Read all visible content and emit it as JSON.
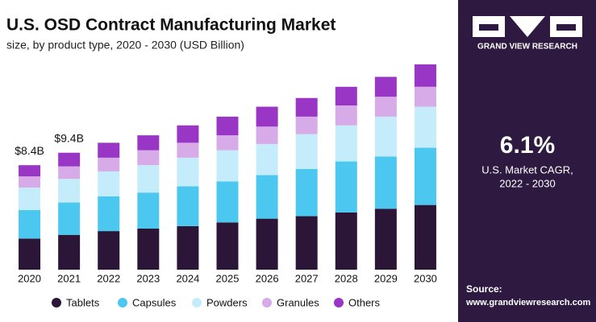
{
  "chart_data": {
    "type": "stacked_bar",
    "title": "U.S. OSD Contract Manufacturing Market",
    "subtitle": "size, by product type, 2020 - 2030 (USD Billion)",
    "categories": [
      "2020",
      "2021",
      "2022",
      "2023",
      "2024",
      "2025",
      "2026",
      "2027",
      "2028",
      "2029",
      "2030"
    ],
    "series": [
      {
        "name": "Tablets",
        "color": "#2b1637",
        "values": [
          2.5,
          2.8,
          3.1,
          3.3,
          3.5,
          3.8,
          4.1,
          4.3,
          4.6,
          4.9,
          5.2
        ]
      },
      {
        "name": "Capsules",
        "color": "#4cc8f0",
        "values": [
          2.3,
          2.6,
          2.8,
          2.9,
          3.2,
          3.3,
          3.5,
          3.8,
          4.1,
          4.2,
          4.6
        ]
      },
      {
        "name": "Powders",
        "color": "#c4ecfb",
        "values": [
          1.8,
          1.9,
          2.0,
          2.2,
          2.3,
          2.5,
          2.5,
          2.8,
          2.9,
          3.2,
          3.3
        ]
      },
      {
        "name": "Granules",
        "color": "#d7aae8",
        "values": [
          0.9,
          1.0,
          1.1,
          1.2,
          1.2,
          1.2,
          1.4,
          1.4,
          1.6,
          1.6,
          1.6
        ]
      },
      {
        "name": "Others",
        "color": "#9a36c6",
        "values": [
          0.9,
          1.1,
          1.2,
          1.2,
          1.4,
          1.5,
          1.6,
          1.5,
          1.5,
          1.6,
          1.8
        ]
      }
    ],
    "annotations": [
      {
        "category": "2020",
        "value": 8.4,
        "label": "$8.4B"
      },
      {
        "category": "2021",
        "value": 9.4,
        "label": "$9.4B"
      }
    ],
    "legend": "bottom"
  },
  "sidebar": {
    "brand": "GRAND VIEW RESEARCH",
    "stat": "6.1%",
    "stat_caption": [
      "U.S. Market CAGR,",
      "2022 - 2030"
    ],
    "source_label": "Source:",
    "source_url": "www.grandviewresearch.com"
  }
}
